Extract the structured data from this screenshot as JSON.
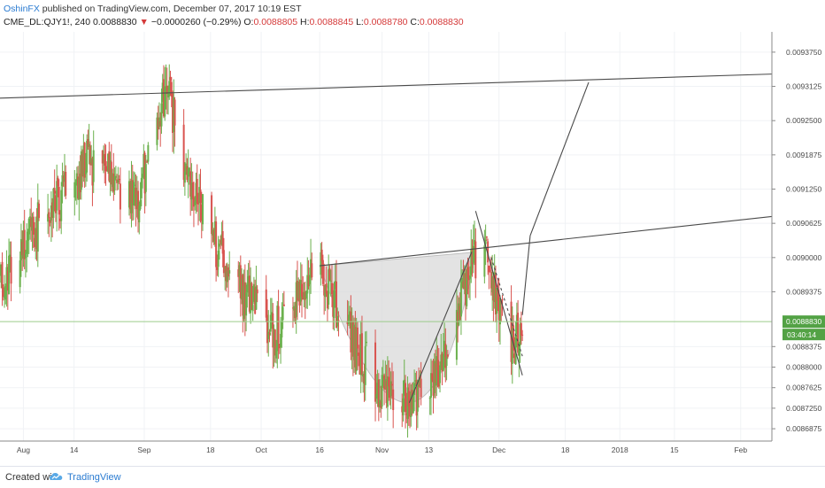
{
  "header": {
    "author": "OshinFX",
    "published": " published on TradingView.com, December 07, 2017 10:19 EST",
    "symbol": "CME_DL:QJY1!, 240",
    "last": "0.0088830",
    "arrow": "▼",
    "change": "−0.0000260 (−0.29%)",
    "o_label": "O:",
    "o": "0.0088805",
    "h_label": "H:",
    "h": "0.0088845",
    "l_label": "L:",
    "l": "0.0088780",
    "c_label": "C:",
    "c": "0.0088830"
  },
  "footer": {
    "created": "Created with",
    "brand": "TradingView"
  },
  "colors": {
    "up": "#6ab04c",
    "down": "#d9534f",
    "line": "#4a4a4a",
    "cup_fill": "#d9d9d9",
    "price_tag": "#53a245",
    "price_line": "#9ccc8a"
  },
  "chart_data": {
    "type": "candlestick",
    "y_ticks": [
      "0.0093750",
      "0.0093125",
      "0.0092500",
      "0.0091875",
      "0.0091250",
      "0.0090625",
      "0.0090000",
      "0.0089375",
      "0.0088375",
      "0.0088000",
      "0.0087625",
      "0.0087250",
      "0.0086875"
    ],
    "y_tick_values": [
      0.009375,
      0.0093125,
      0.00925,
      0.0091875,
      0.009125,
      0.0090625,
      0.009,
      0.0089375,
      0.0088375,
      0.0088,
      0.0087625,
      0.008725,
      0.0086875
    ],
    "ylim": [
      0.008665,
      0.009412
    ],
    "x_ticks": [
      "Aug",
      "14",
      "Sep",
      "18",
      "Oct",
      "16",
      "Nov",
      "13",
      "Dec",
      "18",
      "2018",
      "15",
      "Feb"
    ],
    "x_tick_dates": [
      "2017-08-01",
      "2017-08-14",
      "2017-09-01",
      "2017-09-18",
      "2017-10-01",
      "2017-10-16",
      "2017-11-01",
      "2017-11-13",
      "2017-12-01",
      "2017-12-18",
      "2018-01-01",
      "2018-01-15",
      "2018-02-01"
    ],
    "xlim": [
      "2017-07-26",
      "2018-02-09"
    ],
    "current_price": "0.0088830",
    "current_value": 0.008883,
    "countdown": "03:40:14",
    "key_points": [
      {
        "date": "2017-07-26",
        "price": 0.00896
      },
      {
        "date": "2017-08-04",
        "price": 0.00905
      },
      {
        "date": "2017-08-18",
        "price": 0.00918
      },
      {
        "date": "2017-08-30",
        "price": 0.0091
      },
      {
        "date": "2017-09-07",
        "price": 0.00931
      },
      {
        "date": "2017-09-12",
        "price": 0.00915
      },
      {
        "date": "2017-09-18",
        "price": 0.00904
      },
      {
        "date": "2017-09-26",
        "price": 0.00894
      },
      {
        "date": "2017-10-04",
        "price": 0.00886
      },
      {
        "date": "2017-10-16",
        "price": 0.00898
      },
      {
        "date": "2017-10-25",
        "price": 0.00884
      },
      {
        "date": "2017-11-03",
        "price": 0.00874
      },
      {
        "date": "2017-11-08",
        "price": 0.00873
      },
      {
        "date": "2017-11-16",
        "price": 0.00881
      },
      {
        "date": "2017-11-22",
        "price": 0.00895
      },
      {
        "date": "2017-11-26",
        "price": 0.00902
      },
      {
        "date": "2017-11-28",
        "price": 0.009
      },
      {
        "date": "2017-12-01",
        "price": 0.00889
      },
      {
        "date": "2017-12-05",
        "price": 0.00884
      },
      {
        "date": "2017-12-07",
        "price": 0.00888
      }
    ],
    "trendlines": [
      {
        "from": {
          "date": "2017-07-26",
          "price": 0.009291
        },
        "to": {
          "date": "2018-02-09",
          "price": 0.009335
        }
      },
      {
        "from": {
          "date": "2017-10-16",
          "price": 0.008985
        },
        "to": {
          "date": "2018-02-09",
          "price": 0.009075
        }
      },
      {
        "from": {
          "date": "2017-11-08",
          "price": 0.008735
        },
        "to": {
          "date": "2017-11-24",
          "price": 0.00901
        }
      },
      {
        "from": {
          "date": "2017-11-25",
          "price": 0.009085
        },
        "to": {
          "date": "2017-12-07",
          "price": 0.008785
        }
      },
      {
        "from": {
          "date": "2017-11-29",
          "price": 0.009
        },
        "to": {
          "date": "2017-12-07",
          "price": 0.00882
        },
        "dashed": true
      },
      {
        "from": {
          "date": "2017-12-07",
          "price": 0.008895
        },
        "to": {
          "date": "2017-12-09",
          "price": 0.00904
        }
      },
      {
        "from": {
          "date": "2017-12-09",
          "price": 0.00904
        },
        "to": {
          "date": "2017-12-24",
          "price": 0.00932
        }
      }
    ],
    "cup_shape": {
      "start": {
        "date": "2017-10-16",
        "price": 0.008985
      },
      "bottom": {
        "date": "2017-11-08",
        "price": 0.008735
      },
      "end": {
        "date": "2017-11-25",
        "price": 0.00901
      }
    }
  }
}
